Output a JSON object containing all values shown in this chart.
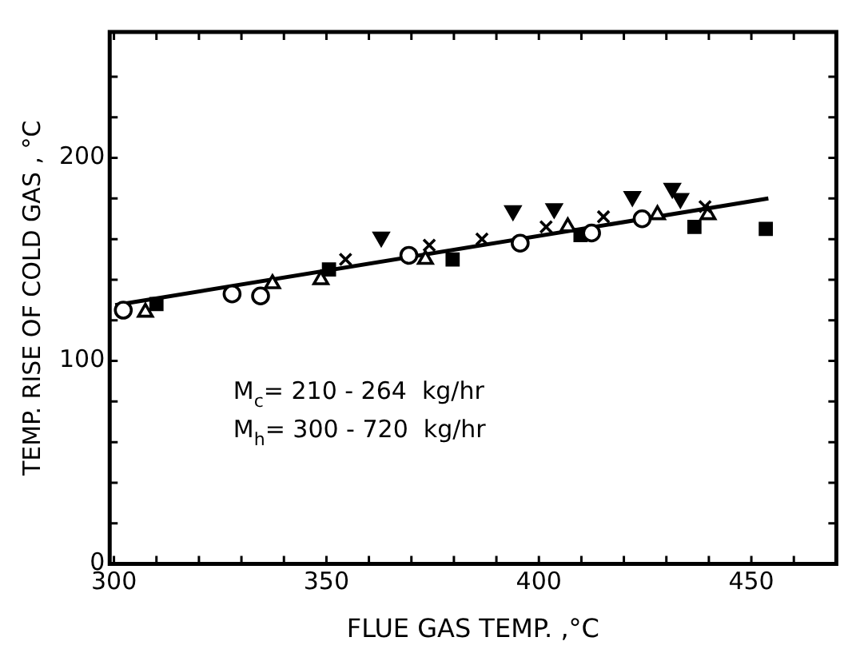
{
  "chart_data": {
    "type": "scatter",
    "xlabel": "FLUE GAS TEMP. ,°C",
    "ylabel": "TEMP. RISE OF COLD GAS , °C",
    "xlim": [
      299,
      470
    ],
    "ylim": [
      0,
      262
    ],
    "xticks": [
      300,
      {
        "value": 310,
        "label": null
      },
      {
        "value": 320,
        "label": null
      },
      {
        "value": 330,
        "label": null
      },
      {
        "value": 340,
        "label": null
      },
      350,
      {
        "value": 360,
        "label": null
      },
      {
        "value": 370,
        "label": null
      },
      {
        "value": 380,
        "label": null
      },
      {
        "value": 390,
        "label": null
      },
      400,
      {
        "value": 410,
        "label": null
      },
      {
        "value": 420,
        "label": null
      },
      {
        "value": 430,
        "label": null
      },
      {
        "value": 440,
        "label": null
      },
      450,
      {
        "value": 460,
        "label": null
      }
    ],
    "yticks": [
      0,
      {
        "value": 20,
        "label": null
      },
      {
        "value": 40,
        "label": null
      },
      {
        "value": 60,
        "label": null
      },
      {
        "value": 80,
        "label": null
      },
      100,
      {
        "value": 120,
        "label": null
      },
      {
        "value": 140,
        "label": null
      },
      {
        "value": 160,
        "label": null
      },
      {
        "value": 180,
        "label": null
      },
      200,
      {
        "value": 220,
        "label": null
      },
      {
        "value": 240,
        "label": null
      }
    ],
    "grid": false,
    "legend": false,
    "annotations": [
      "M$_{c}$= 210 - 264  kg/hr",
      "M$_{h}$= 300 - 720  kg/hr"
    ],
    "series": [
      {
        "marker": "circle",
        "color": "#000000",
        "x": [
          302.2,
          327.8,
          334.5,
          369.4,
          395.6,
          412.4,
          424.3
        ],
        "values": [
          125,
          133,
          132,
          152,
          158,
          163,
          170
        ]
      },
      {
        "marker": "triangle",
        "color": "#000000",
        "x": [
          307.4,
          337.3,
          373.3,
          406.8,
          427.9,
          439.8
        ],
        "values": [
          124,
          138,
          150,
          166,
          172,
          172
        ]
      },
      {
        "marker": "square",
        "color": "#000000",
        "x": [
          310,
          350.6,
          379.7,
          409.8,
          436.6,
          453.4
        ],
        "values": [
          128,
          145,
          150,
          162,
          166,
          165
        ]
      },
      {
        "marker": "triangle-down",
        "color": "#000000",
        "x": [
          362.9,
          393.9,
          403.6,
          422,
          431.4,
          433.3
        ],
        "values": [
          161,
          174,
          175,
          181,
          185,
          180
        ]
      },
      {
        "marker": "cross",
        "color": "#000000",
        "x": [
          354.5,
          374.2,
          386.6,
          401.7,
          415.2,
          439.1
        ],
        "values": [
          150,
          157,
          160,
          166,
          171,
          176
        ]
      },
      {
        "marker": "triangle",
        "color": "#000000",
        "x": [
          348.7
        ],
        "values": [
          140
        ]
      },
      {
        "type": "line",
        "marker": "none",
        "color": "#000000",
        "x": [
          300.3,
          454
        ],
        "values": [
          127.5,
          180
        ]
      }
    ]
  }
}
